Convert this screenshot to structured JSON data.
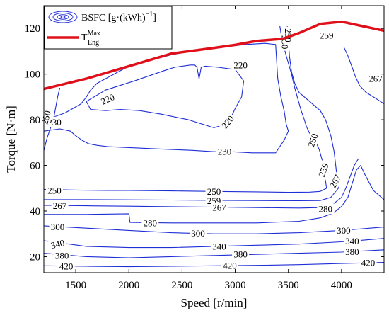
{
  "chart_data": {
    "type": "contour",
    "xlabel": "Speed [r/min]",
    "ylabel": "Torque [N·m]",
    "xlim": [
      1200,
      4400
    ],
    "ylim": [
      13,
      130
    ],
    "xticks": [
      1500,
      2000,
      2500,
      3000,
      3500,
      4000
    ],
    "yticks": [
      20,
      40,
      60,
      80,
      100,
      120
    ],
    "grid": false,
    "legend_position": "top-left",
    "legend": {
      "contour_label": "BSFC [g·(kWh)",
      "contour_label_sup": "−1",
      "contour_label_close": "]",
      "max_torque_label": "T",
      "max_torque_sup": "Max",
      "max_torque_sub": "Eng"
    },
    "colors": {
      "contour": "#1f2fd6",
      "max_torque": "#e0101a",
      "axis": "#000000"
    },
    "max_torque_curve": {
      "x": [
        1200,
        1600,
        2000,
        2400,
        2800,
        3000,
        3200,
        3450,
        3600,
        3800,
        4000,
        4200,
        4400
      ],
      "y": [
        93.5,
        98,
        103.5,
        109,
        111.5,
        112.8,
        114.5,
        115.5,
        118,
        122,
        123,
        121,
        119
      ]
    },
    "contours": [
      {
        "level": "220",
        "x": [
          1600,
          1780,
          2050,
          2330,
          2430,
          2580,
          2620,
          2640,
          2660,
          2680,
          2720,
          2840,
          3000,
          3080,
          3060,
          3000,
          2960,
          2920,
          2870,
          2800,
          2560,
          2300,
          2100,
          1920,
          1780,
          1640,
          1600
        ],
        "y": [
          88,
          93,
          97,
          101.5,
          103,
          104,
          104,
          103,
          98,
          103,
          103.5,
          103,
          102,
          97,
          90,
          85,
          81,
          79,
          77.5,
          76.5,
          80,
          82.5,
          84,
          84.5,
          84,
          84.5,
          88
        ]
      },
      {
        "level": "230",
        "x": [
          1200,
          1280,
          1400,
          1550,
          1600,
          1640,
          1700,
          1800,
          2000,
          2400,
          2700,
          2900,
          3000,
          3100,
          3280,
          3380,
          3400,
          3430,
          3460,
          3480,
          3500,
          3460,
          3380,
          3300,
          3160,
          2960,
          2800
        ],
        "y": [
          80,
          81,
          83,
          87,
          90,
          93,
          96,
          98.5,
          103.5,
          108.5,
          111,
          112,
          112.5,
          113,
          113.5,
          113,
          98,
          90,
          84,
          78,
          75,
          71,
          65.5,
          65.5,
          65.5,
          66,
          66
        ]
      },
      {
        "level": "230",
        "x": [
          1200,
          1350,
          1450,
          1500,
          1560,
          1620,
          1700,
          1800,
          2000,
          2300,
          2600,
          2800
        ],
        "y": [
          75,
          76,
          75,
          73,
          71,
          69.5,
          68.8,
          68.2,
          67.8,
          67.2,
          66.6,
          66
        ]
      },
      {
        "level": "250",
        "x": [
          1200,
          1230,
          1260,
          1290,
          1310,
          1330,
          1350
        ],
        "y": [
          66.5,
          72,
          76,
          80,
          85,
          90,
          94
        ]
      },
      {
        "level": "250",
        "x": [
          3420,
          3440,
          3480,
          3530,
          3560,
          3590,
          3620,
          3650,
          3670,
          3700,
          3730,
          3760,
          3790,
          3820,
          3840,
          3860
        ],
        "y": [
          121,
          115,
          108,
          100,
          94,
          89,
          84,
          80,
          77,
          74,
          72,
          70,
          67,
          62,
          56,
          50
        ]
      },
      {
        "level": "250",
        "x": [
          1200,
          1500,
          1800,
          2000,
          2400,
          2800,
          3200,
          3500,
          3700,
          3800,
          3860
        ],
        "y": [
          49.5,
          49.2,
          49,
          49,
          48.8,
          48.6,
          48.4,
          48.2,
          48.3,
          48.6,
          50
        ]
      },
      {
        "level": "259",
        "x": [
          3490,
          3500,
          3510,
          3530,
          3560,
          3600,
          3650,
          3700,
          3750,
          3800,
          3850,
          3900,
          3930,
          3950,
          3970
        ],
        "y": [
          121,
          116,
          108,
          101,
          96,
          92,
          90,
          88,
          86,
          84,
          80,
          73,
          66,
          58,
          50
        ]
      },
      {
        "level": "259",
        "x": [
          1200,
          1600,
          2000,
          2400,
          2800,
          3200,
          3600,
          3800,
          3900,
          3970
        ],
        "y": [
          45,
          45,
          44.9,
          44.8,
          44.7,
          44.6,
          44.5,
          44.6,
          46,
          50
        ]
      },
      {
        "level": "267",
        "x": [
          4020,
          4060,
          4100,
          4130,
          4170,
          4230,
          4300,
          4350,
          4400
        ],
        "y": [
          112,
          108,
          103,
          99,
          95,
          92,
          90,
          88.5,
          87
        ]
      },
      {
        "level": "267",
        "x": [
          1200,
          1600,
          2000,
          2400,
          2800,
          3200,
          3600,
          3800,
          3920,
          4000,
          4040,
          4080,
          4120,
          4160
        ],
        "y": [
          42.5,
          42.3,
          42.1,
          41.9,
          41.7,
          41.5,
          41.3,
          41.5,
          43,
          46,
          50,
          55,
          60,
          63
        ]
      },
      {
        "level": "280",
        "x": [
          1200,
          1600,
          2000,
          2010,
          2400,
          2800,
          3200,
          3600,
          3800,
          3920,
          4000,
          4060,
          4100,
          4140,
          4180,
          4220,
          4300,
          4400
        ],
        "y": [
          38.5,
          38.5,
          38.8,
          35,
          34.8,
          34.8,
          34.8,
          35.5,
          37,
          39,
          42,
          46,
          52,
          58,
          60,
          56,
          49,
          45
        ]
      },
      {
        "level": "300",
        "x": [
          1200,
          1600,
          2000,
          2400,
          2800,
          3200,
          3600,
          4000,
          4400
        ],
        "y": [
          33.5,
          32.5,
          31.5,
          30.5,
          30,
          30,
          30.5,
          31.5,
          33
        ]
      },
      {
        "level": "340",
        "x": [
          1200,
          1600,
          2000,
          2400,
          2800,
          3200,
          3600,
          4000,
          4200,
          4400
        ],
        "y": [
          27,
          24.5,
          24,
          24,
          24.5,
          25,
          25.5,
          26.5,
          27.2,
          28
        ]
      },
      {
        "level": "380",
        "x": [
          1200,
          1600,
          2000,
          2400,
          2800,
          3200,
          3600,
          4000,
          4400
        ],
        "y": [
          21.5,
          20,
          19.5,
          20,
          20.5,
          21,
          21.5,
          22,
          23
        ]
      },
      {
        "level": "420",
        "x": [
          1200,
          1600,
          2000,
          2400,
          2800,
          3200,
          3600,
          4000,
          4400
        ],
        "y": [
          16,
          15.8,
          15.6,
          15.8,
          16,
          16.2,
          16.5,
          17,
          17.5
        ]
      }
    ],
    "contour_labels": [
      {
        "text": "220",
        "x": 3050,
        "y": 104,
        "angle": 0
      },
      {
        "text": "220",
        "x": 1800,
        "y": 89,
        "angle": -24
      },
      {
        "text": "220",
        "x": 2930,
        "y": 79,
        "angle": -50
      },
      {
        "text": "230",
        "x": 3470,
        "y": 114,
        "angle": 90
      },
      {
        "text": "230",
        "x": 1300,
        "y": 79,
        "angle": 0
      },
      {
        "text": "230",
        "x": 2900,
        "y": 66,
        "angle": 0
      },
      {
        "text": "250",
        "x": 3500,
        "y": 117,
        "angle": 90
      },
      {
        "text": "250",
        "x": 1220,
        "y": 81,
        "angle": -75
      },
      {
        "text": "250",
        "x": 3730,
        "y": 71,
        "angle": -70
      },
      {
        "text": "250",
        "x": 1300,
        "y": 49,
        "angle": 0
      },
      {
        "text": "250",
        "x": 2800,
        "y": 48.5,
        "angle": 0
      },
      {
        "text": "259",
        "x": 3860,
        "y": 117,
        "angle": 0
      },
      {
        "text": "259",
        "x": 3830,
        "y": 58,
        "angle": -70
      },
      {
        "text": "259",
        "x": 2800,
        "y": 44.5,
        "angle": 0
      },
      {
        "text": "267",
        "x": 4320,
        "y": 98,
        "angle": 0
      },
      {
        "text": "267",
        "x": 3940,
        "y": 53,
        "angle": -62
      },
      {
        "text": "267",
        "x": 1350,
        "y": 42.3,
        "angle": 0
      },
      {
        "text": "267",
        "x": 2850,
        "y": 41.5,
        "angle": 0
      },
      {
        "text": "280",
        "x": 2200,
        "y": 34.8,
        "angle": 0
      },
      {
        "text": "280",
        "x": 3850,
        "y": 41,
        "angle": 0
      },
      {
        "text": "300",
        "x": 1330,
        "y": 33,
        "angle": 0
      },
      {
        "text": "300",
        "x": 2650,
        "y": 30.2,
        "angle": 0
      },
      {
        "text": "300",
        "x": 4020,
        "y": 31.5,
        "angle": 0
      },
      {
        "text": "340",
        "x": 1330,
        "y": 25.5,
        "angle": -14
      },
      {
        "text": "340",
        "x": 2850,
        "y": 24.5,
        "angle": 0
      },
      {
        "text": "340",
        "x": 4100,
        "y": 26.8,
        "angle": 0
      },
      {
        "text": "380",
        "x": 1370,
        "y": 20.5,
        "angle": 0
      },
      {
        "text": "380",
        "x": 3050,
        "y": 21,
        "angle": 0
      },
      {
        "text": "380",
        "x": 4100,
        "y": 22.2,
        "angle": 0
      },
      {
        "text": "420",
        "x": 1410,
        "y": 15.8,
        "angle": 0
      },
      {
        "text": "420",
        "x": 2950,
        "y": 16.1,
        "angle": 0
      },
      {
        "text": "420",
        "x": 4250,
        "y": 17.3,
        "angle": 0
      }
    ]
  }
}
